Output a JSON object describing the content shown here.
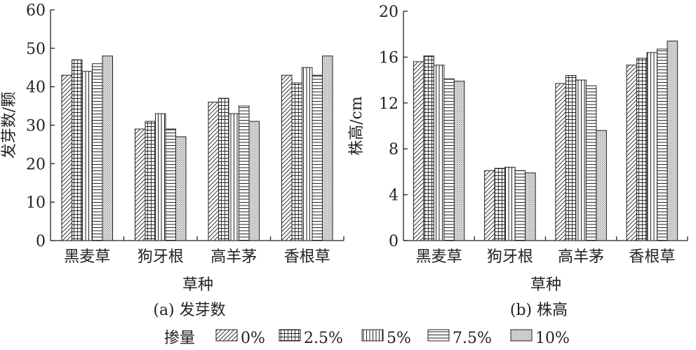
{
  "legend": {
    "title": "掺量",
    "entries": [
      "0%",
      "2.5%",
      "5%",
      "7.5%",
      "10%"
    ]
  },
  "chart_data": [
    {
      "type": "bar",
      "caption": "(a) 发芽数",
      "xlabel": "草种",
      "ylabel": "发芽数/颗",
      "ylim": [
        0,
        60
      ],
      "yticks": [
        "0",
        "10",
        "20",
        "30",
        "40",
        "50",
        "60"
      ],
      "categories": [
        "黑麦草",
        "狗牙根",
        "高羊茅",
        "香根草"
      ],
      "series": [
        {
          "name": "0%",
          "values": [
            43,
            29,
            36,
            43
          ]
        },
        {
          "name": "2.5%",
          "values": [
            47,
            31,
            37,
            41
          ]
        },
        {
          "name": "5%",
          "values": [
            44,
            33,
            33,
            45
          ]
        },
        {
          "name": "7.5%",
          "values": [
            46,
            29,
            35,
            43
          ]
        },
        {
          "name": "10%",
          "values": [
            48,
            27,
            31,
            48
          ]
        }
      ]
    },
    {
      "type": "bar",
      "caption": "(b) 株高",
      "xlabel": "草种",
      "ylabel": "株高/cm",
      "ylim": [
        0,
        20
      ],
      "yticks": [
        "0",
        "4",
        "8",
        "12",
        "16",
        "20"
      ],
      "categories": [
        "黑麦草",
        "狗牙根",
        "高羊茅",
        "香根草"
      ],
      "series": [
        {
          "name": "0%",
          "values": [
            15.6,
            6.1,
            13.7,
            15.3
          ]
        },
        {
          "name": "2.5%",
          "values": [
            16.1,
            6.3,
            14.4,
            15.9
          ]
        },
        {
          "name": "5%",
          "values": [
            15.3,
            6.4,
            14.0,
            16.4
          ]
        },
        {
          "name": "7.5%",
          "values": [
            14.1,
            6.1,
            13.5,
            16.7
          ]
        },
        {
          "name": "10%",
          "values": [
            13.9,
            5.9,
            9.6,
            17.4
          ]
        }
      ]
    }
  ]
}
